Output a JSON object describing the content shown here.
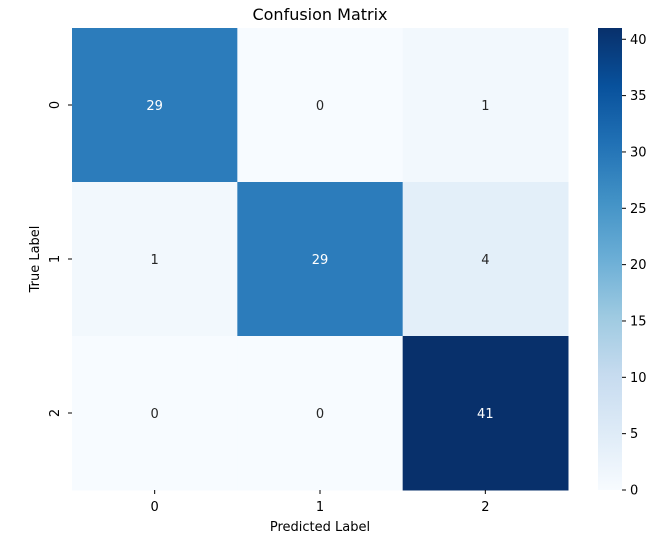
{
  "chart_data": {
    "type": "heatmap",
    "title": "Confusion Matrix",
    "xlabel": "Predicted Label",
    "ylabel": "True Label",
    "x_categories": [
      "0",
      "1",
      "2"
    ],
    "y_categories": [
      "0",
      "1",
      "2"
    ],
    "values": [
      [
        29,
        0,
        1
      ],
      [
        1,
        29,
        4
      ],
      [
        0,
        0,
        41
      ]
    ],
    "colormap": "Blues",
    "colorbar": {
      "range": [
        0,
        41
      ],
      "ticks": [
        0,
        5,
        10,
        15,
        20,
        25,
        30,
        35,
        40
      ],
      "tick_labels": [
        "0",
        "5",
        "10",
        "15",
        "20",
        "25",
        "30",
        "35",
        "40"
      ]
    },
    "annotation_colors": {
      "light_cell": "#262626",
      "dark_cell": "#ffffff"
    }
  }
}
